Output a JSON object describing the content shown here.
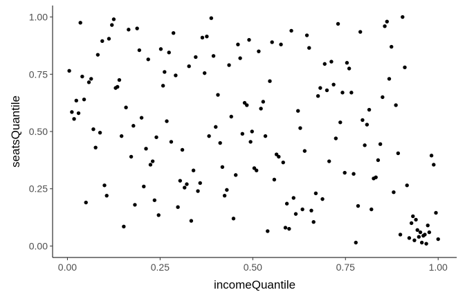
{
  "chart_data": {
    "type": "scatter",
    "title": "",
    "xlabel": "incomeQuantile",
    "ylabel": "seatsQuantile",
    "xlim": [
      -0.04,
      1.05
    ],
    "ylim": [
      -0.05,
      1.05
    ],
    "xticks": [
      0.0,
      0.25,
      0.5,
      0.75,
      1.0
    ],
    "xtick_labels": [
      "0.00",
      "0.25",
      "0.50",
      "0.75",
      "1.00"
    ],
    "yticks": [
      0.0,
      0.25,
      0.5,
      0.75,
      1.0
    ],
    "ytick_labels": [
      "0.00",
      "0.25",
      "0.50",
      "0.75",
      "1.00"
    ],
    "grid": false,
    "point_color": "#000000",
    "axis_color": "#000000",
    "points": [
      [
        0.005,
        0.765
      ],
      [
        0.012,
        0.585
      ],
      [
        0.018,
        0.555
      ],
      [
        0.024,
        0.635
      ],
      [
        0.03,
        0.58
      ],
      [
        0.035,
        0.975
      ],
      [
        0.04,
        0.74
      ],
      [
        0.045,
        0.64
      ],
      [
        0.05,
        0.19
      ],
      [
        0.058,
        0.715
      ],
      [
        0.064,
        0.73
      ],
      [
        0.07,
        0.51
      ],
      [
        0.076,
        0.43
      ],
      [
        0.082,
        0.835
      ],
      [
        0.088,
        0.495
      ],
      [
        0.094,
        0.895
      ],
      [
        0.1,
        0.265
      ],
      [
        0.106,
        0.22
      ],
      [
        0.112,
        0.905
      ],
      [
        0.12,
        0.965
      ],
      [
        0.125,
        0.99
      ],
      [
        0.13,
        0.69
      ],
      [
        0.135,
        0.695
      ],
      [
        0.14,
        0.725
      ],
      [
        0.146,
        0.48
      ],
      [
        0.152,
        0.085
      ],
      [
        0.158,
        0.605
      ],
      [
        0.165,
        0.945
      ],
      [
        0.172,
        0.39
      ],
      [
        0.178,
        0.525
      ],
      [
        0.182,
        0.18
      ],
      [
        0.188,
        0.95
      ],
      [
        0.194,
        0.855
      ],
      [
        0.2,
        0.56
      ],
      [
        0.206,
        0.26
      ],
      [
        0.212,
        0.425
      ],
      [
        0.218,
        0.815
      ],
      [
        0.224,
        0.355
      ],
      [
        0.23,
        0.37
      ],
      [
        0.235,
        0.2
      ],
      [
        0.24,
        0.475
      ],
      [
        0.246,
        0.135
      ],
      [
        0.252,
        0.86
      ],
      [
        0.258,
        0.7
      ],
      [
        0.262,
        0.76
      ],
      [
        0.268,
        0.545
      ],
      [
        0.274,
        0.845
      ],
      [
        0.28,
        0.455
      ],
      [
        0.286,
        0.93
      ],
      [
        0.292,
        0.745
      ],
      [
        0.298,
        0.17
      ],
      [
        0.304,
        0.285
      ],
      [
        0.31,
        0.42
      ],
      [
        0.316,
        0.255
      ],
      [
        0.322,
        0.27
      ],
      [
        0.328,
        0.785
      ],
      [
        0.334,
        0.11
      ],
      [
        0.34,
        0.33
      ],
      [
        0.346,
        0.825
      ],
      [
        0.352,
        0.24
      ],
      [
        0.358,
        0.275
      ],
      [
        0.364,
        0.91
      ],
      [
        0.37,
        0.755
      ],
      [
        0.376,
        0.915
      ],
      [
        0.382,
        0.48
      ],
      [
        0.388,
        0.995
      ],
      [
        0.394,
        0.83
      ],
      [
        0.4,
        0.52
      ],
      [
        0.406,
        0.66
      ],
      [
        0.412,
        0.45
      ],
      [
        0.418,
        0.345
      ],
      [
        0.424,
        0.22
      ],
      [
        0.43,
        0.245
      ],
      [
        0.436,
        0.79
      ],
      [
        0.442,
        0.565
      ],
      [
        0.448,
        0.12
      ],
      [
        0.454,
        0.31
      ],
      [
        0.46,
        0.88
      ],
      [
        0.466,
        0.82
      ],
      [
        0.472,
        0.49
      ],
      [
        0.478,
        0.625
      ],
      [
        0.484,
        0.615
      ],
      [
        0.49,
        0.9
      ],
      [
        0.494,
        0.455
      ],
      [
        0.498,
        0.5
      ],
      [
        0.504,
        0.34
      ],
      [
        0.51,
        0.33
      ],
      [
        0.516,
        0.85
      ],
      [
        0.522,
        0.6
      ],
      [
        0.528,
        0.63
      ],
      [
        0.534,
        0.48
      ],
      [
        0.54,
        0.065
      ],
      [
        0.546,
        0.72
      ],
      [
        0.552,
        0.89
      ],
      [
        0.558,
        0.29
      ],
      [
        0.564,
        0.4
      ],
      [
        0.57,
        0.39
      ],
      [
        0.576,
        0.88
      ],
      [
        0.582,
        0.365
      ],
      [
        0.588,
        0.08
      ],
      [
        0.592,
        0.185
      ],
      [
        0.598,
        0.075
      ],
      [
        0.604,
        0.94
      ],
      [
        0.61,
        0.21
      ],
      [
        0.616,
        0.14
      ],
      [
        0.622,
        0.59
      ],
      [
        0.628,
        0.515
      ],
      [
        0.634,
        0.16
      ],
      [
        0.64,
        0.415
      ],
      [
        0.646,
        0.92
      ],
      [
        0.652,
        0.865
      ],
      [
        0.658,
        0.155
      ],
      [
        0.664,
        0.105
      ],
      [
        0.67,
        0.23
      ],
      [
        0.676,
        0.655
      ],
      [
        0.682,
        0.69
      ],
      [
        0.688,
        0.205
      ],
      [
        0.694,
        0.795
      ],
      [
        0.7,
        0.68
      ],
      [
        0.706,
        0.37
      ],
      [
        0.712,
        0.805
      ],
      [
        0.718,
        0.705
      ],
      [
        0.724,
        0.47
      ],
      [
        0.73,
        0.97
      ],
      [
        0.736,
        0.54
      ],
      [
        0.742,
        0.67
      ],
      [
        0.748,
        0.32
      ],
      [
        0.754,
        0.8
      ],
      [
        0.76,
        0.775
      ],
      [
        0.766,
        0.67
      ],
      [
        0.772,
        0.315
      ],
      [
        0.778,
        0.015
      ],
      [
        0.784,
        0.175
      ],
      [
        0.79,
        0.935
      ],
      [
        0.796,
        0.55
      ],
      [
        0.802,
        0.44
      ],
      [
        0.808,
        0.53
      ],
      [
        0.814,
        0.595
      ],
      [
        0.82,
        0.16
      ],
      [
        0.826,
        0.295
      ],
      [
        0.832,
        0.3
      ],
      [
        0.838,
        0.375
      ],
      [
        0.844,
        0.445
      ],
      [
        0.85,
        0.65
      ],
      [
        0.856,
        0.96
      ],
      [
        0.862,
        0.98
      ],
      [
        0.868,
        0.73
      ],
      [
        0.874,
        0.87
      ],
      [
        0.88,
        0.235
      ],
      [
        0.886,
        0.615
      ],
      [
        0.892,
        0.405
      ],
      [
        0.898,
        0.05
      ],
      [
        0.904,
        1.0
      ],
      [
        0.91,
        0.78
      ],
      [
        0.916,
        0.265
      ],
      [
        0.922,
        0.035
      ],
      [
        0.928,
        0.1
      ],
      [
        0.932,
        0.13
      ],
      [
        0.936,
        0.025
      ],
      [
        0.94,
        0.115
      ],
      [
        0.944,
        0.07
      ],
      [
        0.948,
        0.04
      ],
      [
        0.952,
        0.06
      ],
      [
        0.956,
        0.015
      ],
      [
        0.96,
        0.045
      ],
      [
        0.964,
        0.05
      ],
      [
        0.968,
        0.01
      ],
      [
        0.972,
        0.09
      ],
      [
        0.976,
        0.06
      ],
      [
        0.982,
        0.395
      ],
      [
        0.988,
        0.355
      ],
      [
        0.994,
        0.145
      ],
      [
        1.0,
        0.03
      ]
    ]
  }
}
